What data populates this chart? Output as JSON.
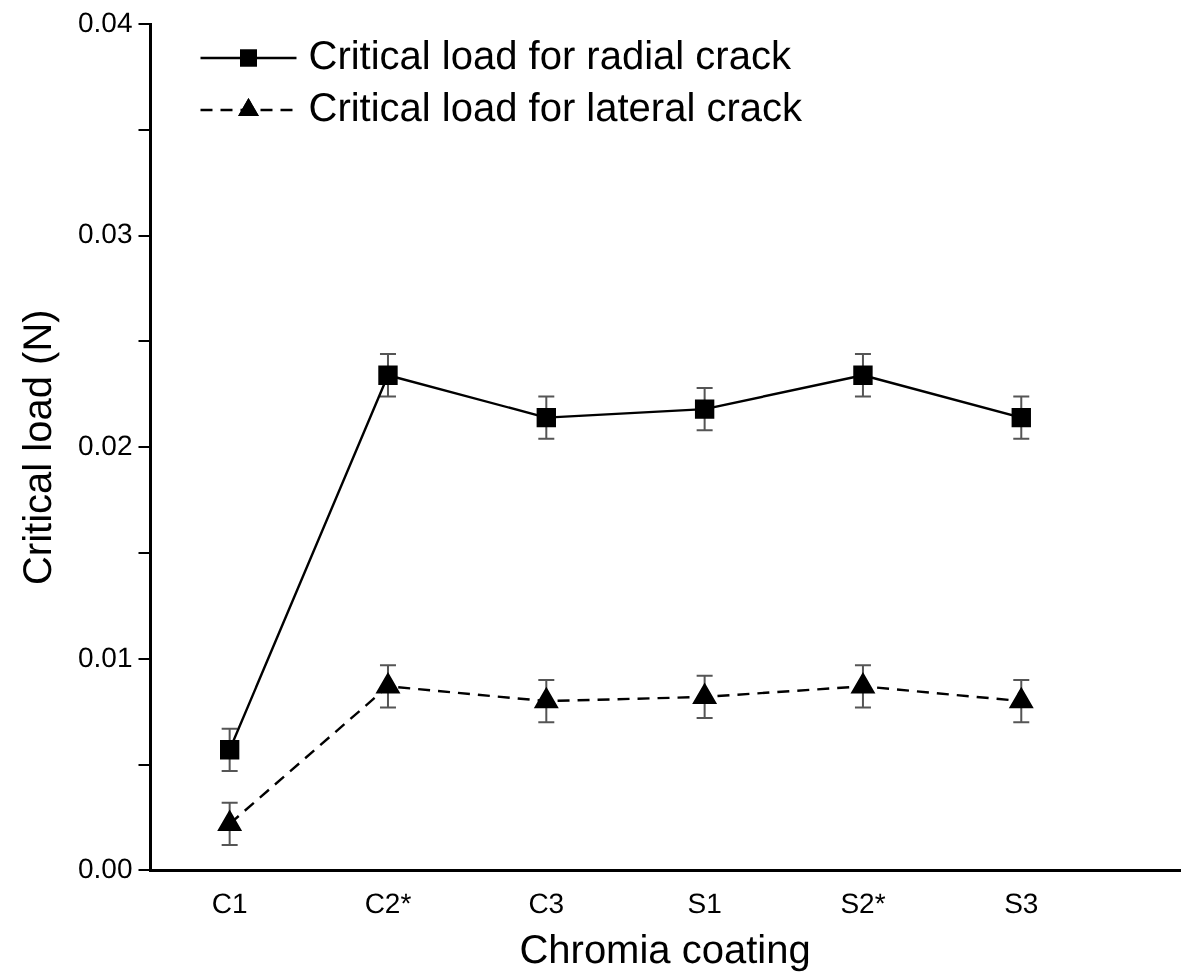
{
  "chart_data": {
    "type": "line",
    "xlabel": "Chromia coating",
    "ylabel": "Critical load (N)",
    "categories": [
      "C1",
      "C2*",
      "C3",
      "S1",
      "S2*",
      "S3"
    ],
    "series": [
      {
        "name": "Critical load for radial crack",
        "color": "#000000",
        "marker": "square",
        "line_style": "solid",
        "values": [
          0.0057,
          0.0234,
          0.0214,
          0.0218,
          0.0234,
          0.0214
        ],
        "errors": [
          0.001,
          0.001,
          0.001,
          0.001,
          0.001,
          0.001
        ]
      },
      {
        "name": "Critical load for lateral crack",
        "color": "#000000",
        "marker": "triangle",
        "line_style": "dashed",
        "values": [
          0.0022,
          0.0087,
          0.008,
          0.0082,
          0.0087,
          0.008
        ],
        "errors": [
          0.001,
          0.001,
          0.001,
          0.001,
          0.001,
          0.001
        ]
      }
    ],
    "ylim": [
      0,
      0.04
    ],
    "yticks": [
      {
        "value": 0,
        "label": "0.00"
      },
      {
        "value": 0.005,
        "label": null
      },
      0.01,
      {
        "value": 0.015,
        "label": null
      },
      0.02,
      {
        "value": 0.025,
        "label": null
      },
      0.03,
      {
        "value": 0.035,
        "label": null
      },
      0.04
    ],
    "grid": false,
    "legend": "top left"
  }
}
